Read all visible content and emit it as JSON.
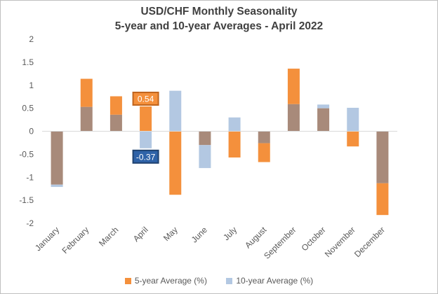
{
  "chart_data": {
    "type": "bar",
    "title": "USD/CHF Monthly Seasonality",
    "subtitle": "5-year and 10-year Averages - April 2022",
    "categories": [
      "January",
      "February",
      "March",
      "April",
      "May",
      "June",
      "July",
      "August",
      "September",
      "October",
      "November",
      "December"
    ],
    "series": [
      {
        "name": "5-year Average (%)",
        "color": "#f4903c",
        "values": [
          -1.16,
          1.14,
          0.76,
          0.54,
          -1.38,
          -0.3,
          -0.57,
          -0.67,
          1.36,
          0.5,
          -0.33,
          -1.82
        ]
      },
      {
        "name": "10-year Average (%)",
        "color": "#b3c8e2",
        "values": [
          -1.21,
          0.53,
          0.36,
          -0.37,
          0.88,
          -0.8,
          0.3,
          -0.26,
          0.59,
          0.58,
          0.51,
          -1.13
        ]
      }
    ],
    "overlap_color": "#a88a7a",
    "ylim": [
      -2,
      2
    ],
    "yticks": [
      "2",
      "1.5",
      "1",
      "0.5",
      "0",
      "-0.5",
      "-1",
      "-1.5",
      "-2"
    ],
    "grid": false,
    "legend_position": "bottom",
    "annotations": [
      {
        "category": "April",
        "series": "5-year Average (%)",
        "text": "0.54",
        "bg": "#f4903c",
        "border": "#c0651e"
      },
      {
        "category": "April",
        "series": "10-year Average (%)",
        "text": "-0.37",
        "bg": "#2f63a8",
        "border": "#1f4270"
      }
    ]
  }
}
